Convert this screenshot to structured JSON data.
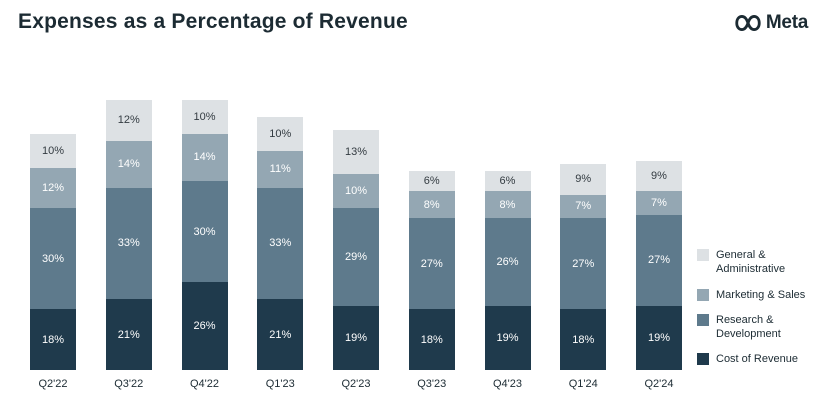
{
  "header": {
    "title": "Expenses as a Percentage of Revenue",
    "brand": "Meta"
  },
  "chart_data": {
    "type": "bar",
    "stacked": true,
    "title": "Expenses as a Percentage of Revenue",
    "xlabel": "",
    "ylabel": "",
    "ylim": [
      0,
      80
    ],
    "grid": false,
    "legend_position": "right",
    "value_suffix": "%",
    "categories": [
      "Q2'22",
      "Q3'22",
      "Q4'22",
      "Q1'23",
      "Q2'23",
      "Q3'23",
      "Q4'23",
      "Q1'24",
      "Q2'24"
    ],
    "series": [
      {
        "name": "Cost of Revenue",
        "color": "#1f3a4c",
        "label_color": "#ffffff",
        "values": [
          18,
          21,
          26,
          21,
          19,
          18,
          19,
          18,
          19
        ]
      },
      {
        "name": "Research & Development",
        "color": "#5e7a8c",
        "label_color": "#ffffff",
        "values": [
          30,
          33,
          30,
          33,
          29,
          27,
          26,
          27,
          27
        ]
      },
      {
        "name": "Marketing & Sales",
        "color": "#94a7b3",
        "label_color": "#ffffff",
        "values": [
          12,
          14,
          14,
          11,
          10,
          8,
          8,
          7,
          7
        ]
      },
      {
        "name": "General & Administrative",
        "color": "#dde1e4",
        "label_color": "#333b41",
        "values": [
          10,
          12,
          10,
          10,
          13,
          6,
          6,
          9,
          9
        ]
      }
    ],
    "legend": [
      {
        "label": "General & Administrative",
        "color": "#dde1e4"
      },
      {
        "label": "Marketing & Sales",
        "color": "#94a7b3"
      },
      {
        "label": "Research & Development",
        "color": "#5e7a8c"
      },
      {
        "label": "Cost of Revenue",
        "color": "#1f3a4c"
      }
    ]
  }
}
